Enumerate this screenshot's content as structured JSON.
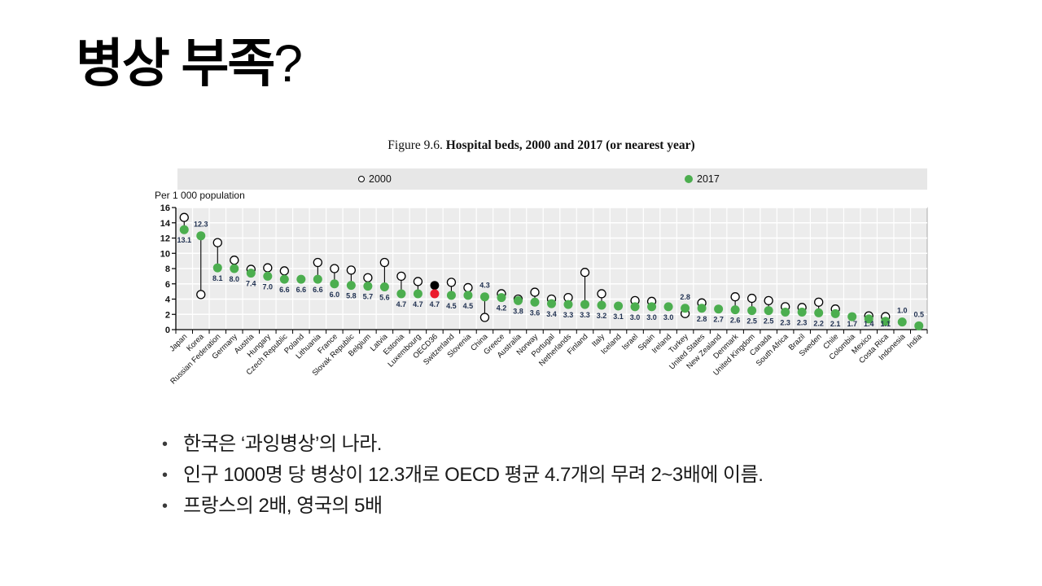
{
  "slide": {
    "title": "병상 부족",
    "title_q": "?",
    "bullets": [
      "한국은 ‘과잉병상’의 나라.",
      "인구 1000명 당 병상이 12.3개로 OECD 평균 4.7개의 무려 2~3배에 이름.",
      "프랑스의 2배, 영국의 5배"
    ]
  },
  "figure": {
    "title_prefix": "Figure 9.6. ",
    "title_main": "Hospital beds, 2000 and 2017 (or nearest year)",
    "y_axis_label": "Per 1 000 population",
    "legend_2000": "2000",
    "legend_2017": "2017"
  },
  "chart_data": {
    "type": "scatter",
    "subtype": "dumbbell-dot-plot",
    "title": "Figure 9.6. Hospital beds, 2000 and 2017 (or nearest year)",
    "xlabel": "",
    "ylabel": "Per 1 000 population",
    "ylim": [
      0,
      16
    ],
    "y_ticks": [
      0,
      2,
      4,
      6,
      8,
      10,
      12,
      14,
      16
    ],
    "grid": true,
    "legend_position": "top",
    "categories": [
      "Japan",
      "Korea",
      "Russian Federation",
      "Germany",
      "Austria",
      "Hungary",
      "Czech Republic",
      "Poland",
      "Lithuania",
      "France",
      "Slovak Republic",
      "Belgium",
      "Latvia",
      "Estonia",
      "Luxembourg",
      "OECD36",
      "Switzerland",
      "Slovenia",
      "China",
      "Greece",
      "Australia",
      "Norway",
      "Portugal",
      "Netherlands",
      "Finland",
      "Italy",
      "Iceland",
      "Israel",
      "Spain",
      "Ireland",
      "Turkey",
      "United States",
      "New Zealand",
      "Denmark",
      "United Kingdom",
      "Canada",
      "South Africa",
      "Brazil",
      "Sweden",
      "Chile",
      "Colombia",
      "Mexico",
      "Costa Rica",
      "Indonesia",
      "India"
    ],
    "series": [
      {
        "name": "2000",
        "marker": "open-circle",
        "values": [
          14.7,
          4.6,
          11.4,
          9.1,
          7.9,
          8.1,
          7.7,
          null,
          8.8,
          8.0,
          7.8,
          6.8,
          8.8,
          7.0,
          6.3,
          5.8,
          6.2,
          5.5,
          1.6,
          4.7,
          4.0,
          4.9,
          4.0,
          4.2,
          7.5,
          4.7,
          null,
          3.8,
          3.7,
          null,
          2.1,
          3.5,
          null,
          4.3,
          4.1,
          3.8,
          3.0,
          2.9,
          3.6,
          2.7,
          null,
          1.8,
          1.7,
          null,
          null
        ],
        "note": "unlabeled open circles, values estimated from gridlines"
      },
      {
        "name": "2017",
        "marker": "filled-circle",
        "color": "#4cae4f",
        "values": [
          13.1,
          12.3,
          8.1,
          8.0,
          7.4,
          7.0,
          6.6,
          6.6,
          6.6,
          6.0,
          5.8,
          5.7,
          5.6,
          4.7,
          4.7,
          4.7,
          4.5,
          4.5,
          4.3,
          4.2,
          3.8,
          3.6,
          3.4,
          3.3,
          3.3,
          3.2,
          3.1,
          3.0,
          3.0,
          3.0,
          2.8,
          2.8,
          2.7,
          2.6,
          2.5,
          2.5,
          2.3,
          2.3,
          2.2,
          2.1,
          1.7,
          1.4,
          1.1,
          1.0,
          0.5
        ]
      }
    ],
    "value_labels_series": "2017",
    "labels_above": [
      "Korea",
      "China",
      "Turkey",
      "Indonesia",
      "India"
    ],
    "special_point": {
      "category": "OECD36",
      "color_2000": "#000000",
      "color_2017": "#eb1c2d"
    },
    "colors": {
      "green": "#4cae4f",
      "red": "#eb1c2d",
      "open_stroke": "#000000",
      "plot_bg": "#ececec",
      "band_bg": "#e7e7e7",
      "gridline": "#ffffff",
      "value_label": "#1f3050",
      "connector": "#000000"
    }
  }
}
